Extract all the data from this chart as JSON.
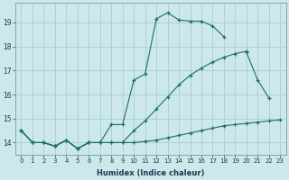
{
  "xlabel": "Humidex (Indice chaleur)",
  "ylabel": "",
  "bg_color": "#cce8eb",
  "grid_color": "#aacdd2",
  "line_color": "#1a7060",
  "xlim": [
    -0.5,
    23.5
  ],
  "ylim": [
    13.5,
    19.8
  ],
  "yticks": [
    14,
    15,
    16,
    17,
    18,
    19
  ],
  "xticks": [
    0,
    1,
    2,
    3,
    4,
    5,
    6,
    7,
    8,
    9,
    10,
    11,
    12,
    13,
    14,
    15,
    16,
    17,
    18,
    19,
    20,
    21,
    22,
    23
  ],
  "series1_x": [
    0,
    1,
    2,
    3,
    4,
    5,
    6,
    7,
    8,
    9,
    10,
    11,
    12,
    13,
    14,
    15,
    16,
    17,
    18,
    19,
    20,
    21,
    22,
    23
  ],
  "series1_y": [
    14.5,
    14.0,
    14.0,
    13.85,
    14.1,
    13.75,
    14.0,
    14.0,
    14.0,
    14.0,
    14.0,
    14.05,
    14.1,
    14.2,
    14.3,
    14.4,
    14.5,
    14.6,
    14.7,
    14.75,
    14.8,
    14.85,
    14.9,
    14.95
  ],
  "series2_x": [
    0,
    1,
    2,
    3,
    4,
    5,
    6,
    7,
    8,
    9,
    10,
    11,
    12,
    13,
    14,
    15,
    16,
    17,
    18,
    19,
    20,
    21,
    22,
    23
  ],
  "series2_y": [
    14.5,
    14.0,
    14.0,
    13.85,
    14.1,
    13.75,
    14.0,
    14.0,
    14.0,
    14.0,
    14.5,
    14.9,
    15.4,
    15.9,
    16.4,
    16.8,
    17.1,
    17.35,
    17.55,
    17.7,
    17.8,
    null,
    null,
    null
  ],
  "series3_x": [
    0,
    1,
    2,
    3,
    4,
    5,
    6,
    7,
    8,
    9,
    10,
    11,
    12,
    13,
    14,
    15,
    16,
    17,
    18,
    19,
    20,
    21,
    22,
    23
  ],
  "series3_y": [
    14.5,
    14.0,
    14.0,
    13.85,
    14.1,
    13.75,
    14.0,
    14.0,
    14.75,
    14.75,
    16.6,
    16.85,
    19.15,
    19.4,
    19.1,
    19.05,
    19.05,
    18.85,
    18.4,
    null,
    17.75,
    16.6,
    15.85,
    null
  ]
}
